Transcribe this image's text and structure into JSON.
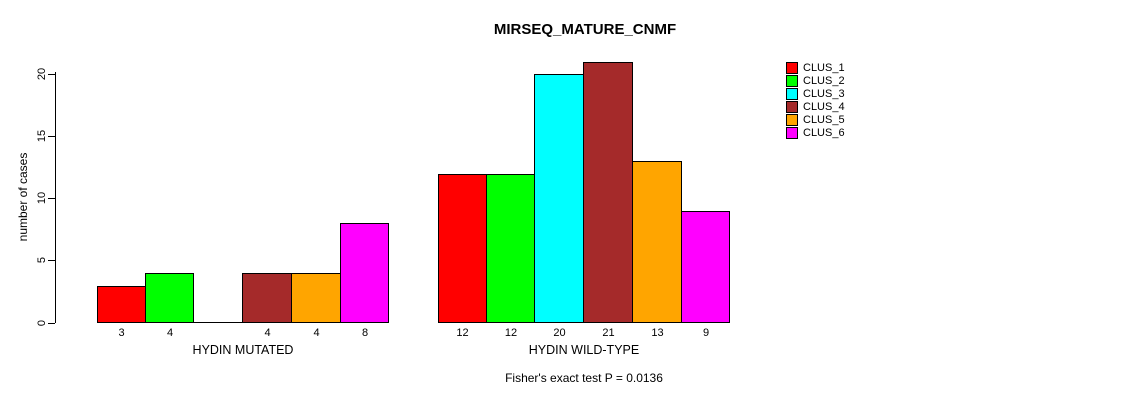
{
  "title": "MIRSEQ_MATURE_CNMF",
  "y_axis": {
    "label": "number of cases"
  },
  "footer": {
    "text": "Fisher's exact test P = 0.0136"
  },
  "legend": {
    "items": [
      {
        "label": "CLUS_1",
        "color": "#FF0000"
      },
      {
        "label": "CLUS_2",
        "color": "#00FF00"
      },
      {
        "label": "CLUS_3",
        "color": "#00FFFF"
      },
      {
        "label": "CLUS_4",
        "color": "#A52A2A"
      },
      {
        "label": "CLUS_5",
        "color": "#FFA500"
      },
      {
        "label": "CLUS_6",
        "color": "#FF00FF"
      }
    ]
  },
  "chart_data": {
    "type": "bar",
    "title": "MIRSEQ_MATURE_CNMF",
    "xlabel": "",
    "ylabel": "number of cases",
    "ylim": [
      0,
      20
    ],
    "yticks": [
      0,
      5,
      10,
      15,
      20
    ],
    "grid": false,
    "legend_position": "right",
    "series": [
      "CLUS_1",
      "CLUS_2",
      "CLUS_3",
      "CLUS_4",
      "CLUS_5",
      "CLUS_6"
    ],
    "colors": [
      "#FF0000",
      "#00FF00",
      "#00FFFF",
      "#A52A2A",
      "#FFA500",
      "#FF00FF"
    ],
    "groups": [
      {
        "label": "HYDIN MUTATED",
        "values": [
          3,
          4,
          0,
          4,
          4,
          8
        ]
      },
      {
        "label": "HYDIN WILD-TYPE",
        "values": [
          12,
          12,
          20,
          21,
          13,
          9
        ]
      }
    ],
    "annotation": "Fisher's exact test P = 0.0136"
  }
}
